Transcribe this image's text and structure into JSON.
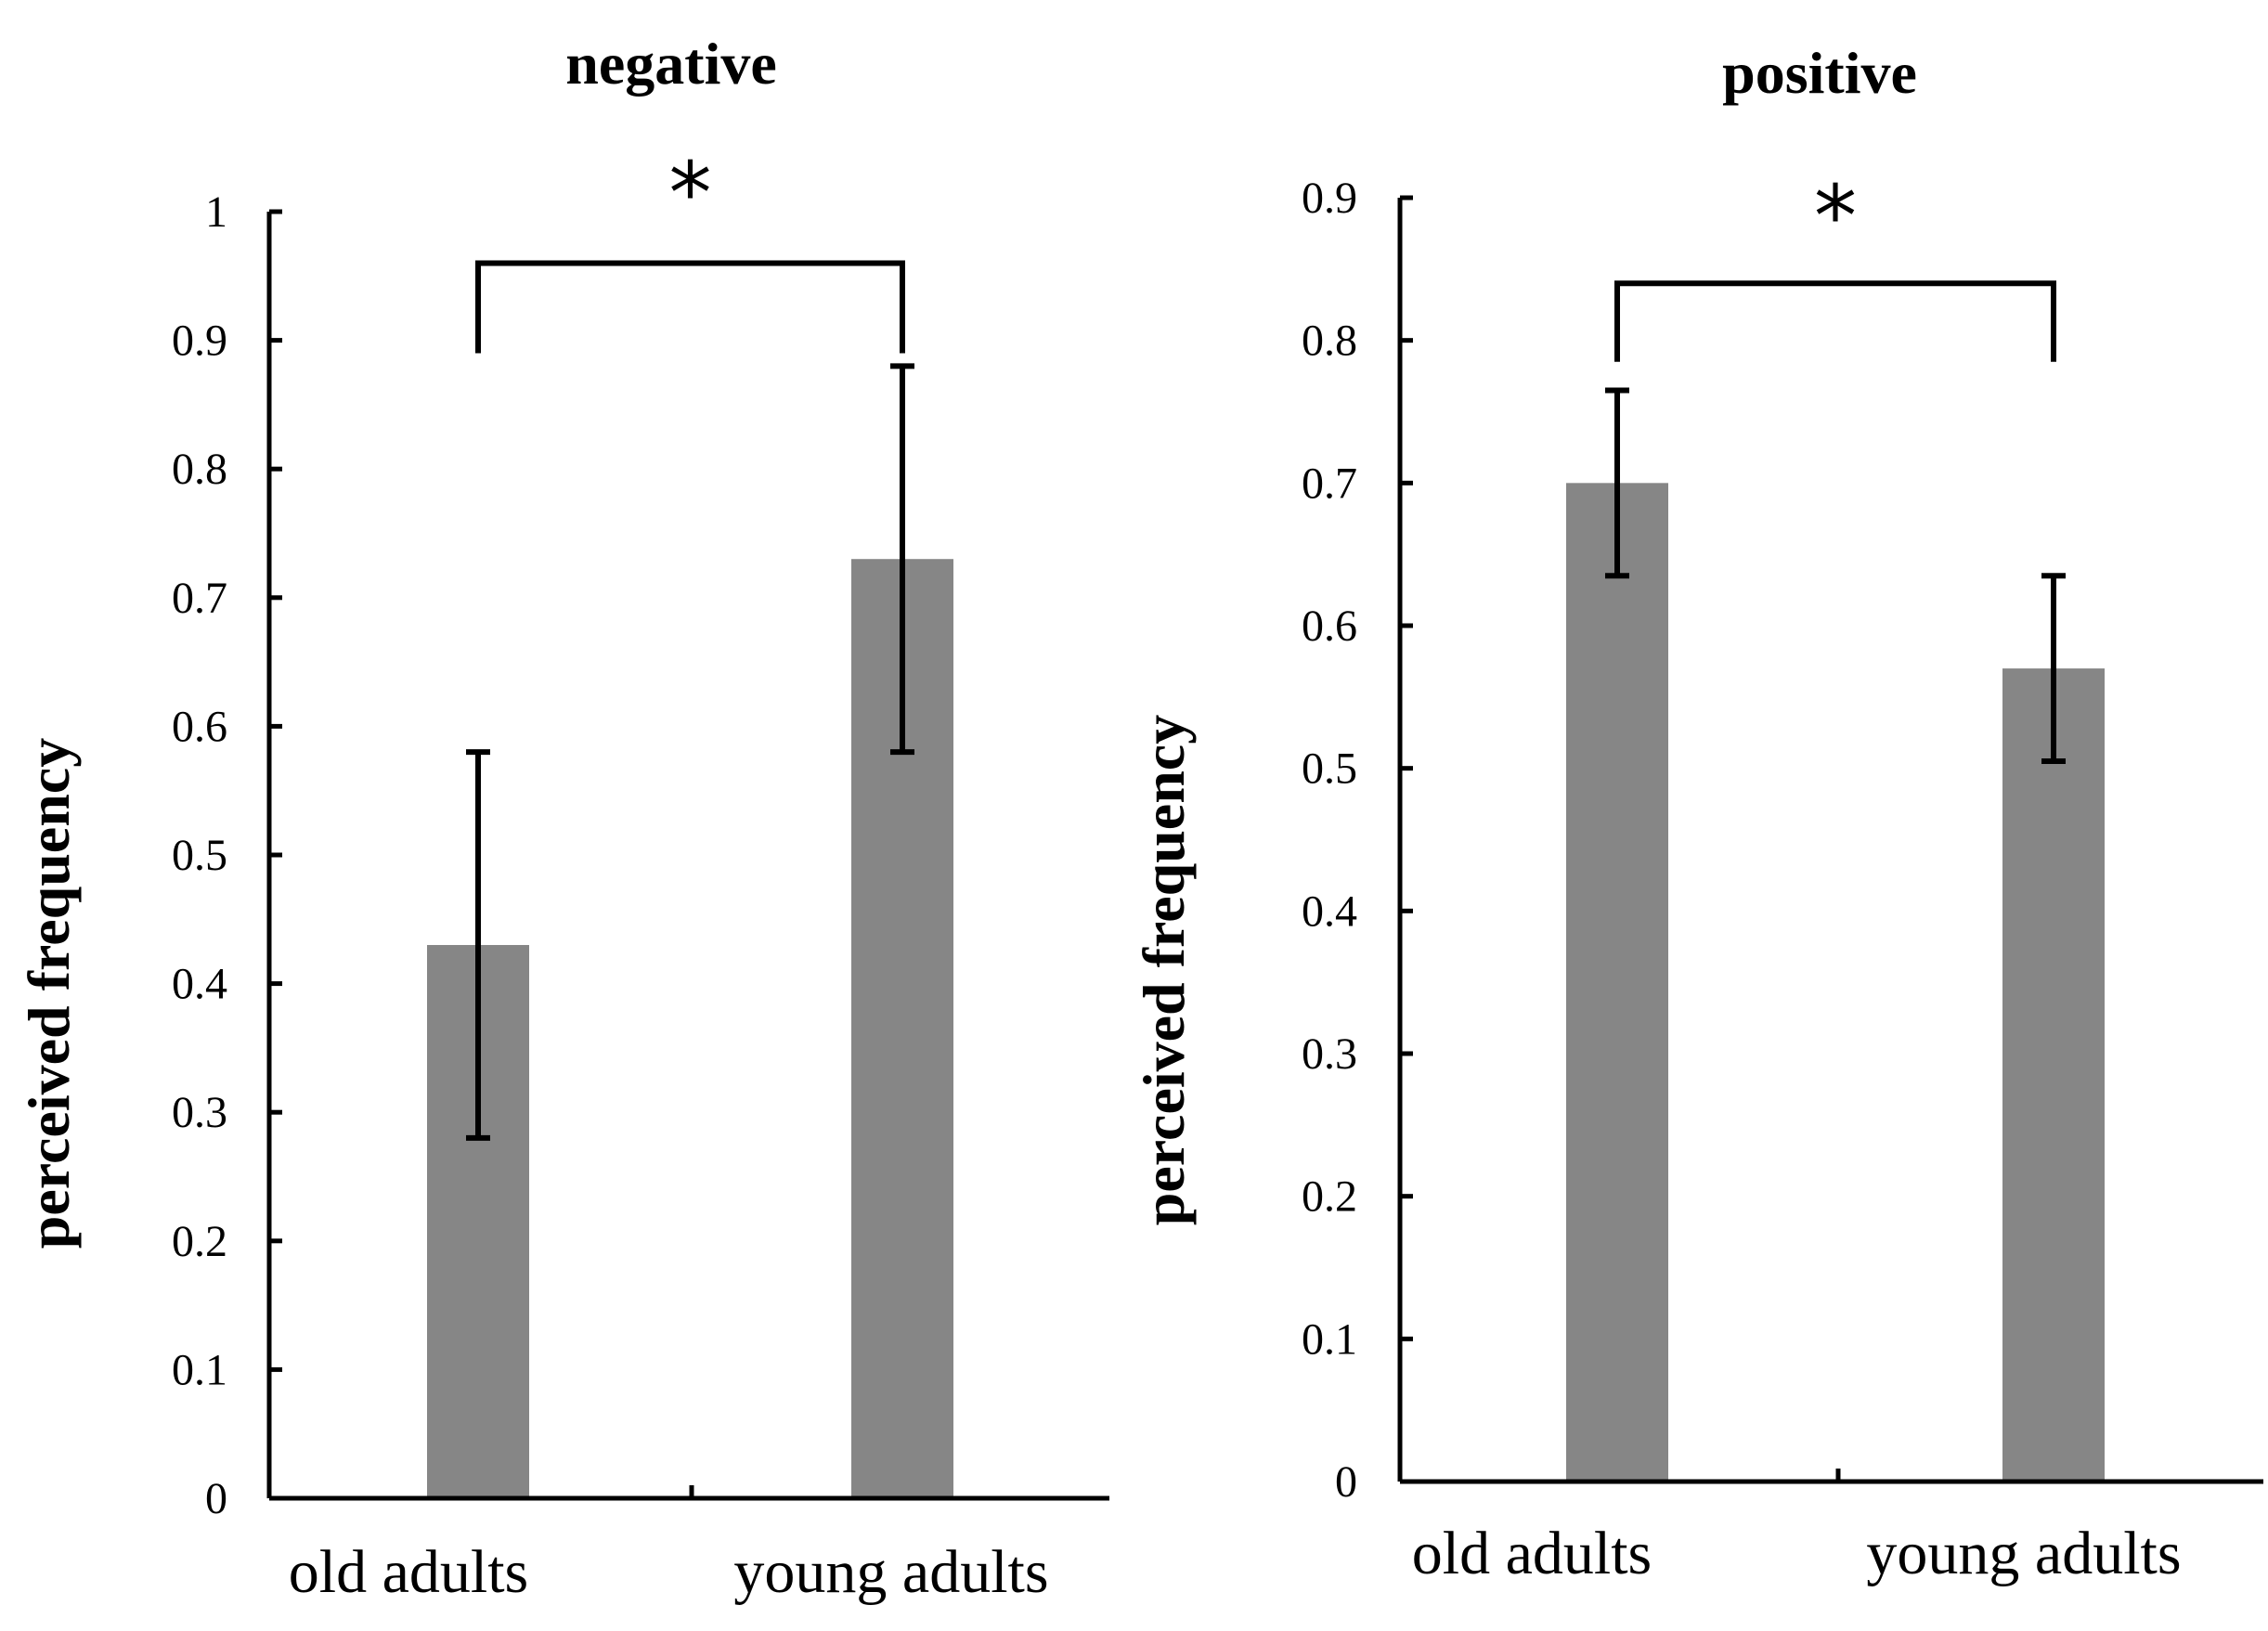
{
  "chart_data": [
    {
      "type": "bar",
      "title": "negative",
      "xlabel": "",
      "ylabel": "perceived frequency",
      "categories": [
        "old adults",
        "young adults"
      ],
      "values": [
        0.43,
        0.73
      ],
      "error_low": [
        0.28,
        0.58
      ],
      "error_high": [
        0.58,
        0.88
      ],
      "ylim": [
        0,
        1
      ],
      "yticks": [
        0,
        0.1,
        0.2,
        0.3,
        0.4,
        0.5,
        0.6,
        0.7,
        0.8,
        0.9,
        1
      ],
      "ytick_labels": [
        "0",
        "0.1",
        "0.2",
        "0.3",
        "0.4",
        "0.5",
        "0.6",
        "0.7",
        "0.8",
        "0.9",
        "1"
      ],
      "significance": {
        "label": "*",
        "between": [
          "old adults",
          "young adults"
        ],
        "bracket_level": 0.96,
        "leg_bottom": 0.89
      },
      "bar_color": "#868686",
      "grid": false
    },
    {
      "type": "bar",
      "title": "positive",
      "xlabel": "",
      "ylabel": "perceived frequency",
      "categories": [
        "old adults",
        "young adults"
      ],
      "values": [
        0.7,
        0.57
      ],
      "error_low": [
        0.635,
        0.505
      ],
      "error_high": [
        0.765,
        0.635
      ],
      "ylim": [
        0,
        0.9
      ],
      "yticks": [
        0,
        0.1,
        0.2,
        0.3,
        0.4,
        0.5,
        0.6,
        0.7,
        0.8,
        0.9
      ],
      "ytick_labels": [
        "0",
        "0.1",
        "0.2",
        "0.3",
        "0.4",
        "0.5",
        "0.6",
        "0.7",
        "0.8",
        "0.9"
      ],
      "significance": {
        "label": "*",
        "between": [
          "old adults",
          "young adults"
        ],
        "bracket_level": 0.84,
        "leg_bottom": 0.785
      },
      "bar_color": "#868686",
      "grid": false
    }
  ]
}
